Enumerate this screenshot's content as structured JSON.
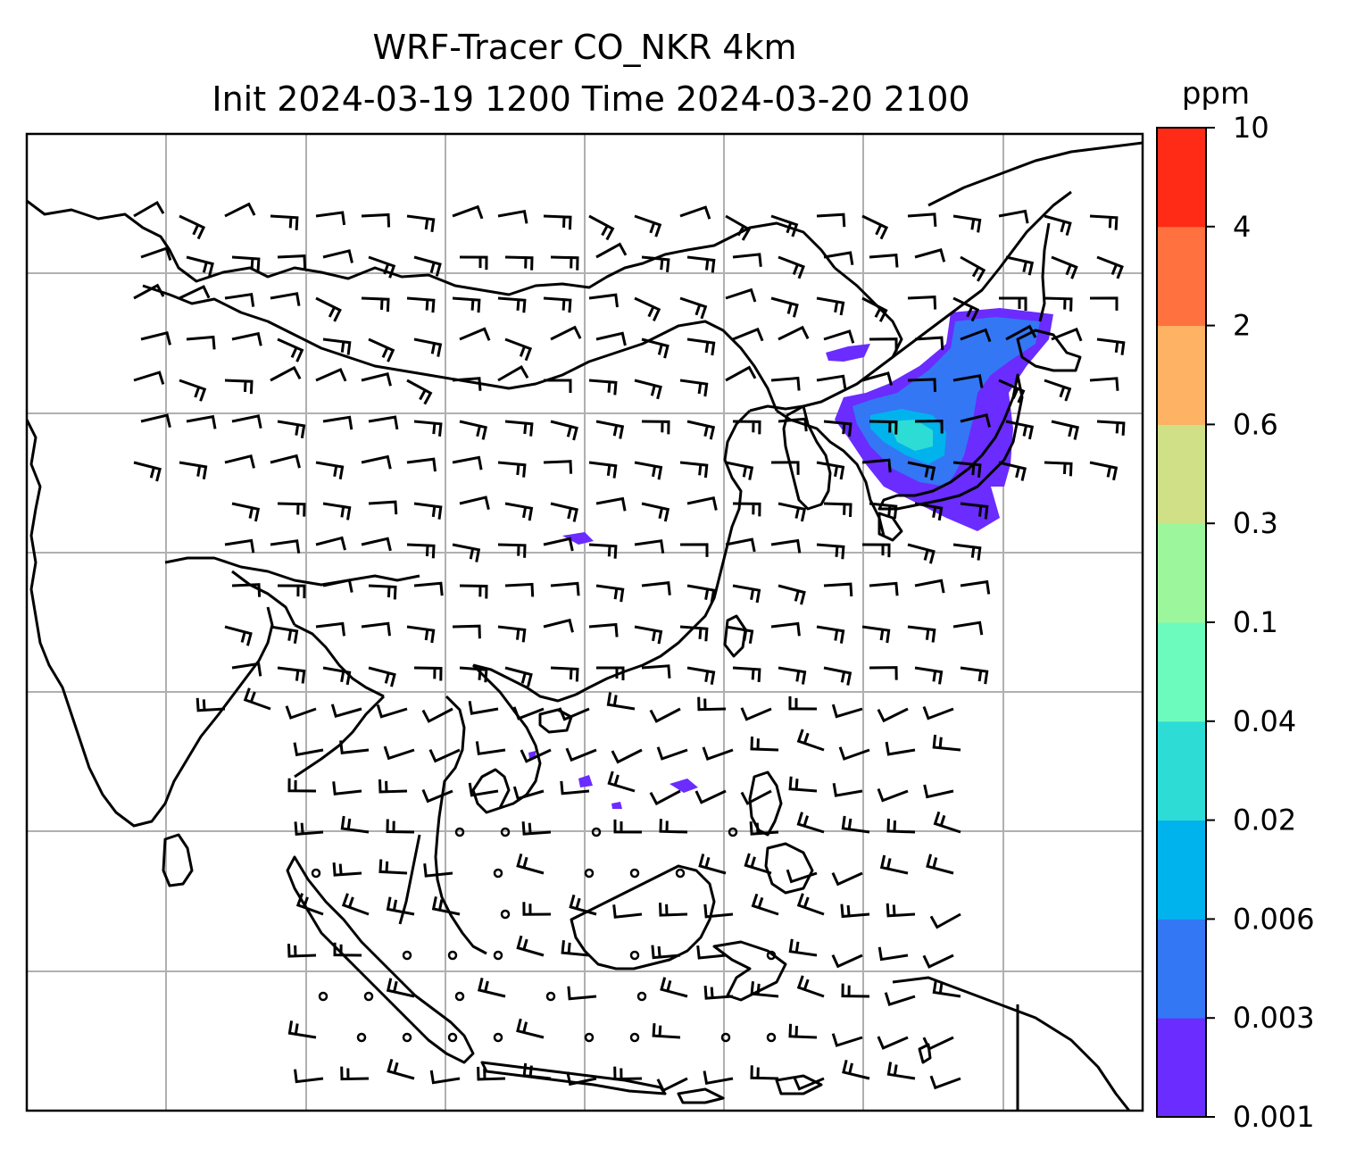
{
  "title_line1": "WRF-Tracer CO_NKR 4km",
  "title_line2": "Init 2024-03-19 1200 Time 2024-03-20 2100",
  "colorbar": {
    "unit": "ppm",
    "levels": [
      {
        "label": "0.001",
        "color": "#6a2cff"
      },
      {
        "label": "0.003",
        "color": "#3377f5"
      },
      {
        "label": "0.006",
        "color": "#00b3ec"
      },
      {
        "label": "0.02",
        "color": "#2edcd6"
      },
      {
        "label": "0.04",
        "color": "#6dfbbd"
      },
      {
        "label": "0.1",
        "color": "#9cf79c"
      },
      {
        "label": "0.3",
        "color": "#cfe086"
      },
      {
        "label": "0.6",
        "color": "#fdb264"
      },
      {
        "label": "2",
        "color": "#ff7240"
      },
      {
        "label": "4",
        "color": "#ff2b16"
      },
      {
        "label": "10",
        "color": null
      }
    ]
  },
  "map": {
    "gridlines": true,
    "grid_color": "#b0b0b0",
    "coastline_color": "#000000",
    "wind_barb_color": "#000000",
    "calm_symbol": "circle"
  }
}
